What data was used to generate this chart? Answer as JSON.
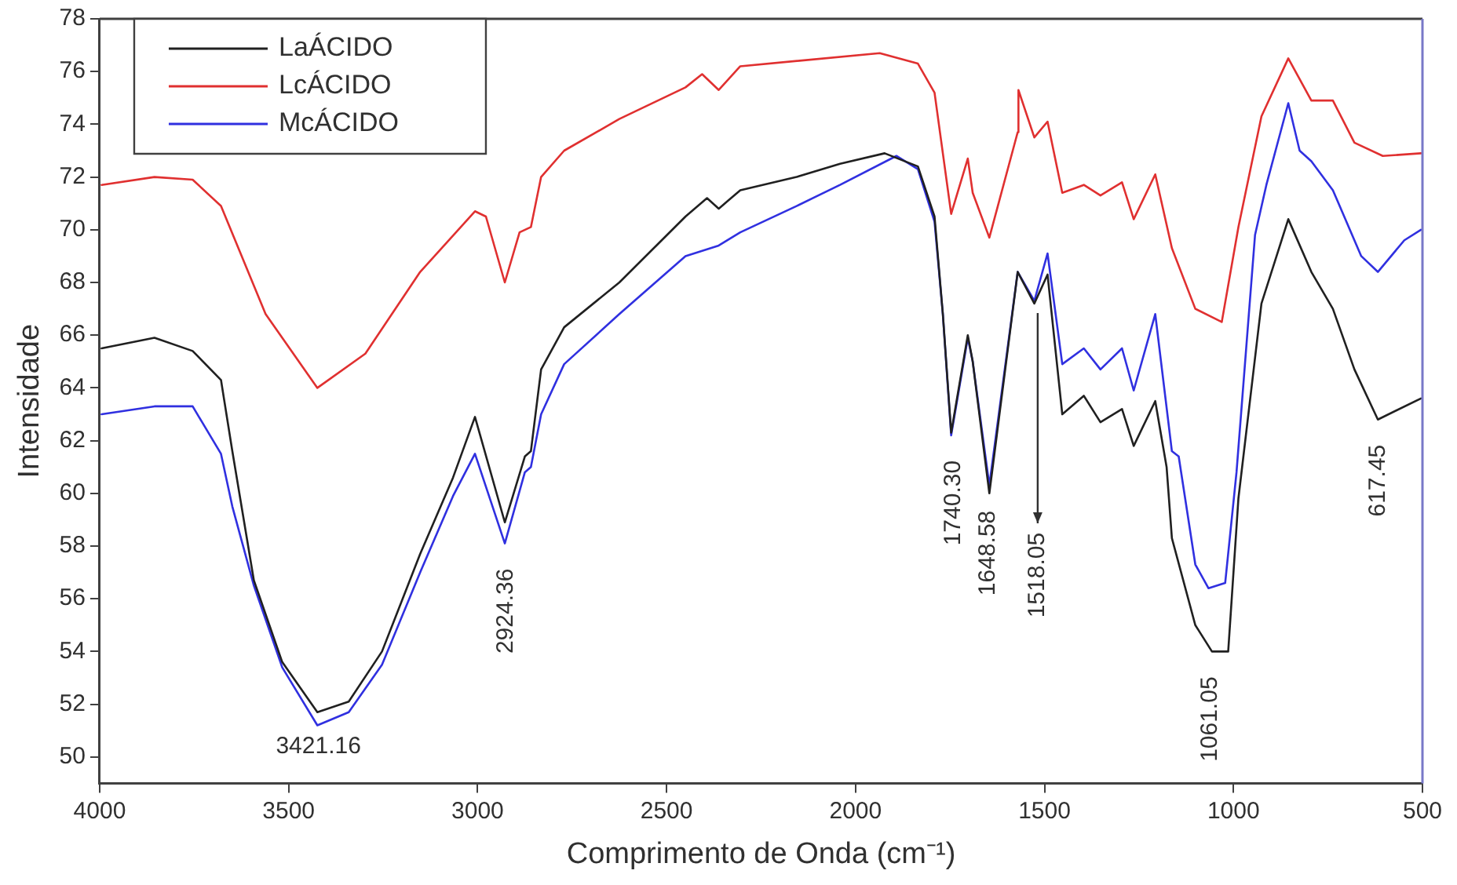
{
  "chart_data": {
    "type": "line",
    "xlabel": "Comprimento de Onda (cm⁻¹)",
    "ylabel": "Intensidade",
    "xlim": [
      4000,
      500
    ],
    "xticks": [
      4000,
      3500,
      3000,
      2500,
      2000,
      1500,
      1000,
      500
    ],
    "ylim": [
      49,
      78
    ],
    "yticks": [
      50,
      52,
      54,
      56,
      58,
      60,
      62,
      64,
      66,
      68,
      70,
      72,
      74,
      76,
      78
    ],
    "grid": false,
    "legend": "top left",
    "marker": "none",
    "line_style": "solid",
    "series": [
      {
        "name": "LaÁCIDO",
        "color": "#202020",
        "x": [
          3995,
          3855,
          3754,
          3679,
          3649,
          3592,
          3517,
          3424,
          3341,
          3253,
          3152,
          3065,
          3007,
          2928,
          2875,
          2859,
          2832,
          2771,
          2625,
          2450,
          2393,
          2362,
          2305,
          2156,
          2041,
          1923,
          1835,
          1791,
          1769,
          1747,
          1703,
          1690,
          1646,
          1571,
          1527,
          1492,
          1453,
          1396,
          1352,
          1295,
          1264,
          1207,
          1177,
          1163,
          1101,
          1057,
          1014,
          987,
          926,
          855,
          794,
          737,
          680,
          618,
          504
        ],
        "values": [
          65.5,
          65.9,
          65.4,
          64.3,
          61.6,
          56.7,
          53.6,
          51.7,
          52.1,
          54.0,
          57.7,
          60.6,
          62.9,
          58.9,
          61.4,
          61.6,
          64.7,
          66.3,
          68.0,
          70.5,
          71.2,
          70.8,
          71.5,
          72.0,
          72.5,
          72.9,
          72.4,
          70.5,
          66.8,
          62.3,
          66.0,
          65.0,
          60.0,
          68.4,
          67.2,
          68.3,
          63.0,
          63.7,
          62.7,
          63.2,
          61.8,
          63.5,
          61.0,
          58.3,
          55.0,
          54.0,
          54.0,
          59.8,
          67.2,
          70.4,
          68.4,
          67.0,
          64.7,
          62.8,
          63.6
        ]
      },
      {
        "name": "LcÁCIDO",
        "color": "#e03030",
        "x": [
          3995,
          3855,
          3754,
          3679,
          3561,
          3424,
          3297,
          3152,
          3007,
          2978,
          2928,
          2889,
          2859,
          2832,
          2771,
          2625,
          2450,
          2406,
          2362,
          2305,
          1936,
          1835,
          1791,
          1769,
          1747,
          1703,
          1690,
          1646,
          1571,
          1569,
          1527,
          1492,
          1453,
          1396,
          1352,
          1295,
          1264,
          1207,
          1163,
          1101,
          1031,
          987,
          926,
          855,
          794,
          737,
          680,
          605,
          504
        ],
        "values": [
          71.7,
          72.0,
          71.9,
          70.9,
          66.8,
          64.0,
          65.3,
          68.4,
          70.7,
          70.5,
          68.0,
          69.9,
          70.1,
          72.0,
          73.0,
          74.2,
          75.4,
          75.9,
          75.3,
          76.2,
          76.7,
          76.3,
          75.2,
          72.9,
          70.6,
          72.7,
          71.4,
          69.7,
          73.7,
          75.3,
          73.5,
          74.1,
          71.4,
          71.7,
          71.3,
          71.8,
          70.4,
          72.1,
          69.3,
          67.0,
          66.5,
          70.1,
          74.3,
          76.5,
          74.9,
          74.9,
          73.3,
          72.8,
          72.9
        ]
      },
      {
        "name": "McÁCIDO",
        "color": "#3030e0",
        "x": [
          3995,
          3855,
          3754,
          3679,
          3649,
          3592,
          3517,
          3424,
          3341,
          3253,
          3152,
          3065,
          3007,
          2928,
          2875,
          2859,
          2832,
          2771,
          2625,
          2450,
          2362,
          2305,
          2156,
          2041,
          1892,
          1835,
          1791,
          1769,
          1747,
          1703,
          1690,
          1646,
          1571,
          1527,
          1492,
          1453,
          1396,
          1352,
          1295,
          1264,
          1207,
          1163,
          1145,
          1101,
          1066,
          1022,
          992,
          943,
          913,
          855,
          825,
          794,
          737,
          662,
          618,
          548,
          504
        ],
        "values": [
          63.0,
          63.3,
          63.3,
          61.5,
          59.5,
          56.5,
          53.4,
          51.2,
          51.7,
          53.5,
          57.0,
          59.9,
          61.5,
          58.1,
          60.8,
          61.0,
          63.0,
          64.9,
          66.8,
          69.0,
          69.4,
          69.9,
          70.9,
          71.7,
          72.8,
          72.3,
          70.3,
          66.8,
          62.2,
          65.9,
          65.0,
          60.3,
          68.4,
          67.3,
          69.1,
          64.9,
          65.5,
          64.7,
          65.5,
          63.9,
          66.8,
          61.6,
          61.4,
          57.3,
          56.4,
          56.6,
          60.8,
          69.8,
          71.7,
          74.8,
          73.0,
          72.6,
          71.5,
          69.0,
          68.4,
          69.6,
          70.0
        ]
      }
    ],
    "annotations": [
      {
        "text": "3421.16",
        "x": 3421.16,
        "y": 51.2
      },
      {
        "text": "2924.36",
        "x": 2924.36,
        "y": 58.1
      },
      {
        "text": "1740.30",
        "x": 1740.3,
        "y": 62.2
      },
      {
        "text": "1648.58",
        "x": 1648.58,
        "y": 60.3
      },
      {
        "text": "1518.05",
        "x": 1518.05,
        "y": 67.2
      },
      {
        "text": "1061.05",
        "x": 1061.05,
        "y": 54.0
      },
      {
        "text": "617.45",
        "x": 617.45,
        "y": 62.8
      }
    ]
  }
}
